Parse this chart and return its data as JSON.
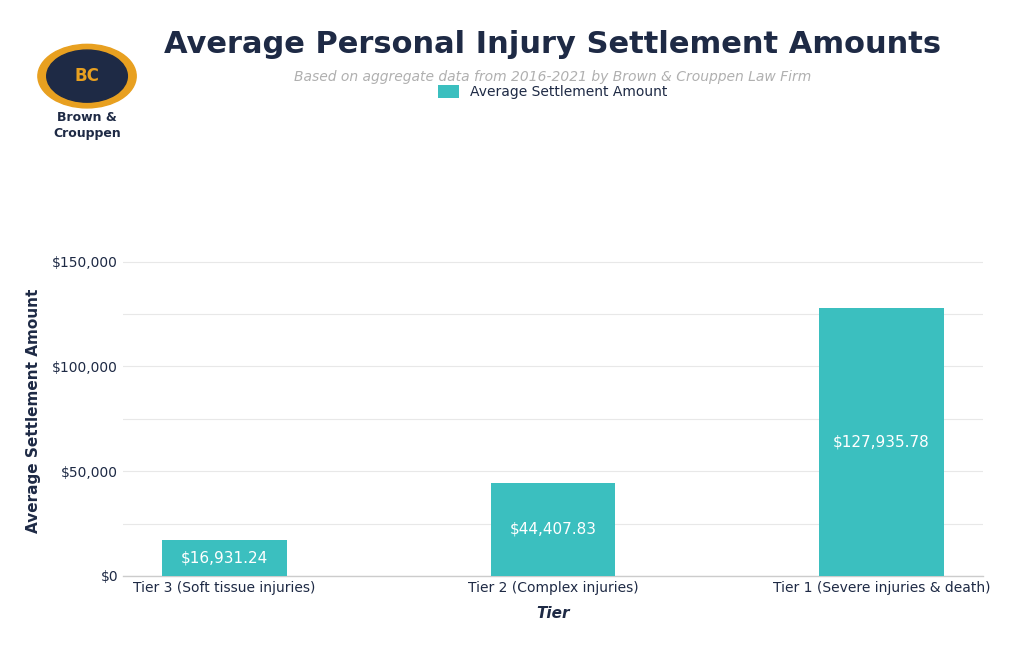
{
  "title": "Average Personal Injury Settlement Amounts",
  "subtitle": "Based on aggregate data from 2016-2021 by Brown & Crouppen Law Firm",
  "xlabel": "Tier",
  "ylabel": "Average Settlement Amount",
  "categories": [
    "Tier 3 (Soft tissue injuries)",
    "Tier 2 (Complex injuries)",
    "Tier 1 (Severe injuries & death)"
  ],
  "values": [
    16931.24,
    44407.83,
    127935.78
  ],
  "bar_labels": [
    "$16,931.24",
    "$44,407.83",
    "$127,935.78"
  ],
  "bar_color": "#3bbfbf",
  "yticks": [
    0,
    25000,
    50000,
    75000,
    100000,
    125000,
    150000
  ],
  "ytick_labels": [
    "$0",
    "",
    "$50,000",
    "",
    "$100,000",
    "",
    "$150,000"
  ],
  "ylim": [
    0,
    158000
  ],
  "legend_label": "Average Settlement Amount",
  "legend_marker_color": "#3bbfbf",
  "title_color": "#1e2a45",
  "subtitle_color": "#b0b0b0",
  "axis_label_color": "#1e2a45",
  "tick_label_color": "#1e2a45",
  "grid_color": "#e8e8e8",
  "background_color": "#ffffff",
  "title_fontsize": 22,
  "subtitle_fontsize": 10,
  "axis_label_fontsize": 11,
  "tick_fontsize": 10,
  "bar_label_fontsize": 11,
  "legend_fontsize": 10,
  "logo_outer_color": "#e8a020",
  "logo_inner_color": "#1e2a45",
  "logo_text": "BC",
  "brand_name": "Brown &\nCrouppen"
}
